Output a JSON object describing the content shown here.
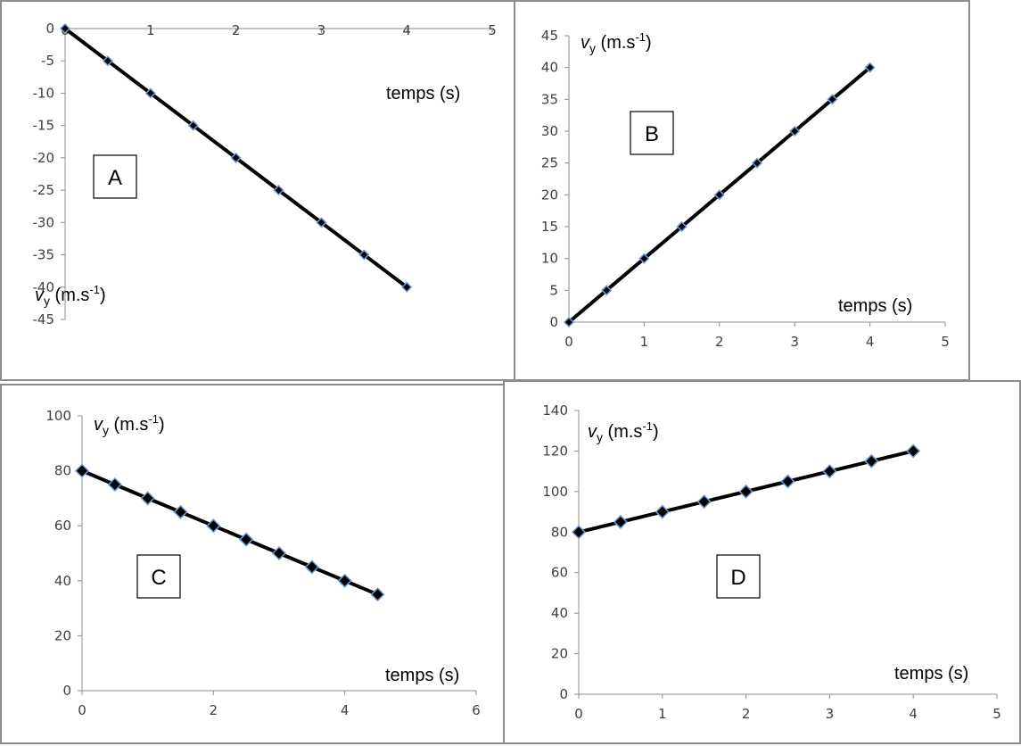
{
  "chart_data": [
    {
      "id": "A",
      "type": "line",
      "panel_label": "A",
      "ylabel": "v",
      "ylabel_sub": "y",
      "ylabel_unit": " (m.s",
      "ylabel_sup": "-1",
      "ylabel_close": ")",
      "xlabel": "temps (s)",
      "x": [
        0,
        0.5,
        1,
        1.5,
        2,
        2.5,
        3,
        3.5,
        4
      ],
      "series": [
        {
          "values": [
            0,
            -5,
            -10,
            -15,
            -20,
            -25,
            -30,
            -35,
            -40
          ]
        }
      ],
      "xlim": [
        0,
        5
      ],
      "ylim": [
        -45,
        0
      ],
      "xticks": [
        0,
        1,
        2,
        3,
        4,
        5
      ],
      "yticks": [
        0,
        -5,
        -10,
        -15,
        -20,
        -25,
        -30,
        -35,
        -40,
        -45
      ],
      "x_axis_position": "top"
    },
    {
      "id": "B",
      "type": "line",
      "panel_label": "B",
      "ylabel": "v",
      "ylabel_sub": "y",
      "ylabel_unit": " (m.s",
      "ylabel_sup": "-1",
      "ylabel_close": ")",
      "xlabel": "temps (s)",
      "x": [
        0,
        0.5,
        1,
        1.5,
        2,
        2.5,
        3,
        3.5,
        4
      ],
      "series": [
        {
          "values": [
            0,
            5,
            10,
            15,
            20,
            25,
            30,
            35,
            40
          ]
        }
      ],
      "xlim": [
        0,
        5
      ],
      "ylim": [
        0,
        45
      ],
      "xticks": [
        0,
        1,
        2,
        3,
        4,
        5
      ],
      "yticks": [
        0,
        5,
        10,
        15,
        20,
        25,
        30,
        35,
        40,
        45
      ]
    },
    {
      "id": "C",
      "type": "line",
      "panel_label": "C",
      "ylabel": "v",
      "ylabel_sub": "y",
      "ylabel_unit": " (m.s",
      "ylabel_sup": "-1",
      "ylabel_close": ")",
      "xlabel": "temps (s)",
      "x": [
        0,
        0.5,
        1,
        1.5,
        2,
        2.5,
        3,
        3.5,
        4,
        4.5
      ],
      "series": [
        {
          "values": [
            80,
            75,
            70,
            65,
            60,
            55,
            50,
            45,
            40,
            35
          ]
        }
      ],
      "xlim": [
        0,
        6
      ],
      "ylim": [
        0,
        100
      ],
      "xticks": [
        0,
        2,
        4,
        6
      ],
      "yticks": [
        0,
        20,
        40,
        60,
        80,
        100
      ]
    },
    {
      "id": "D",
      "type": "line",
      "panel_label": "D",
      "ylabel": "v",
      "ylabel_sub": "y",
      "ylabel_unit": " (m.s",
      "ylabel_sup": "-1",
      "ylabel_close": ")",
      "xlabel": "temps (s)",
      "x": [
        0,
        0.5,
        1,
        1.5,
        2,
        2.5,
        3,
        3.5,
        4
      ],
      "series": [
        {
          "values": [
            80,
            85,
            90,
            95,
            100,
            105,
            110,
            115,
            120
          ]
        }
      ],
      "xlim": [
        0,
        5
      ],
      "ylim": [
        0,
        140
      ],
      "xticks": [
        0,
        1,
        2,
        3,
        4,
        5
      ],
      "yticks": [
        0,
        20,
        40,
        60,
        80,
        100,
        120,
        140
      ]
    }
  ],
  "colors": {
    "line": "#000000",
    "marker_fill": "#000000",
    "marker_edge": "#6f9bd1",
    "axis": "#8c8c8c",
    "tick_text": "#404040"
  }
}
